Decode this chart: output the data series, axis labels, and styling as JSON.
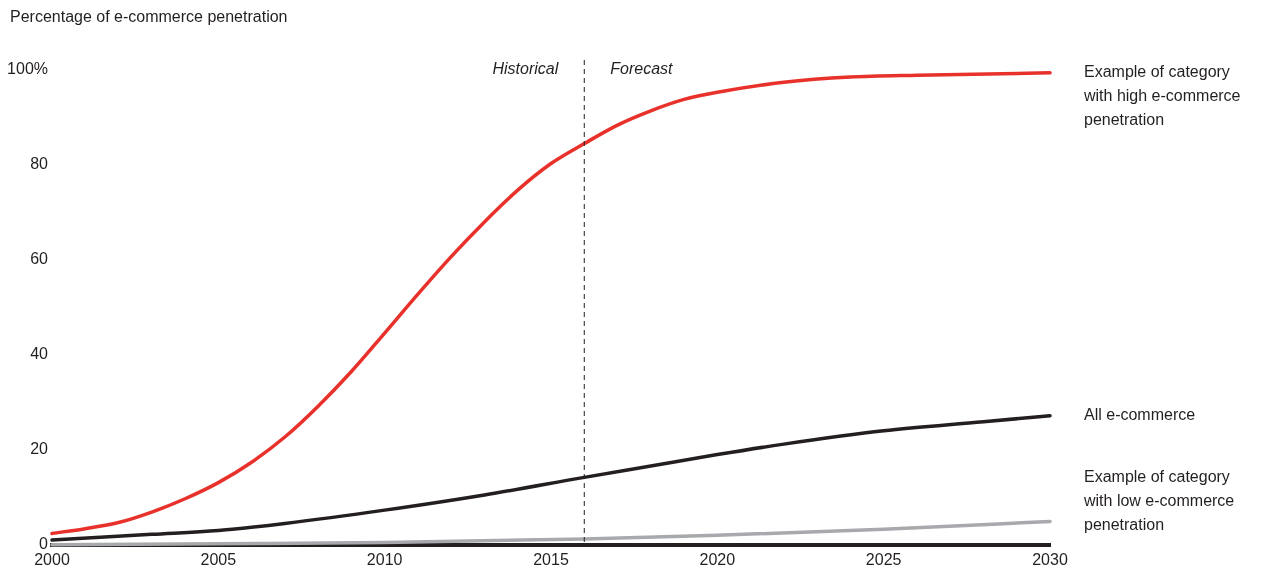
{
  "chart_data": {
    "type": "line",
    "ylabel": "Percentage of e-commerce penetration",
    "xlim": [
      2000,
      2030
    ],
    "xticks": [
      2000,
      2005,
      2010,
      2015,
      2020,
      2025,
      2030
    ],
    "ylim": [
      0,
      100
    ],
    "yticks": [
      0,
      20,
      40,
      60,
      80,
      {
        "value": 100,
        "label": "100%"
      }
    ],
    "grid": false,
    "legend": false,
    "marker": "none",
    "line_style": "solid",
    "ref_lines": [
      {
        "axis": "x",
        "value": 2016,
        "label": null,
        "line_style": "dashed",
        "color": "#231f20"
      }
    ],
    "annotations": [
      {
        "text": "Historical",
        "x": 2016,
        "y": 100
      },
      {
        "text": "Forecast",
        "x": 2016,
        "y": 100
      }
    ],
    "series": [
      {
        "name": "Example of category with high e-commerce penetration",
        "color": "#e8312a",
        "x": [
          2000,
          2001,
          2002,
          2003,
          2004,
          2005,
          2006,
          2007,
          2008,
          2009,
          2010,
          2011,
          2012,
          2013,
          2014,
          2015,
          2016,
          2017,
          2018,
          2019,
          2020,
          2022,
          2024,
          2026,
          2030
        ],
        "values": [
          2.4,
          3.4,
          4.7,
          6.9,
          9.7,
          13.1,
          17.4,
          22.7,
          29.2,
          36.5,
          44.6,
          52.8,
          60.7,
          68,
          74.7,
          80.3,
          84.5,
          88.4,
          91.4,
          93.8,
          95.3,
          97.4,
          98.5,
          98.9,
          99.4
        ]
      },
      {
        "name": "All e-commerce",
        "color": "#231f20",
        "x": [
          2000,
          2003,
          2005,
          2007,
          2010,
          2013,
          2016,
          2018,
          2020,
          2022,
          2025,
          2028,
          2030
        ],
        "values": [
          1,
          2.2,
          3,
          4.5,
          7.3,
          10.5,
          14.2,
          16.6,
          19,
          21.2,
          24,
          25.9,
          27.2
        ]
      },
      {
        "name": "Example of category with low e-commerce penetration",
        "color": "#a7a9ac",
        "x": [
          2000,
          2005,
          2010,
          2016,
          2020,
          2025,
          2030
        ],
        "values": [
          0,
          0.2,
          0.5,
          1.2,
          2,
          3.3,
          4.9
        ]
      }
    ]
  }
}
